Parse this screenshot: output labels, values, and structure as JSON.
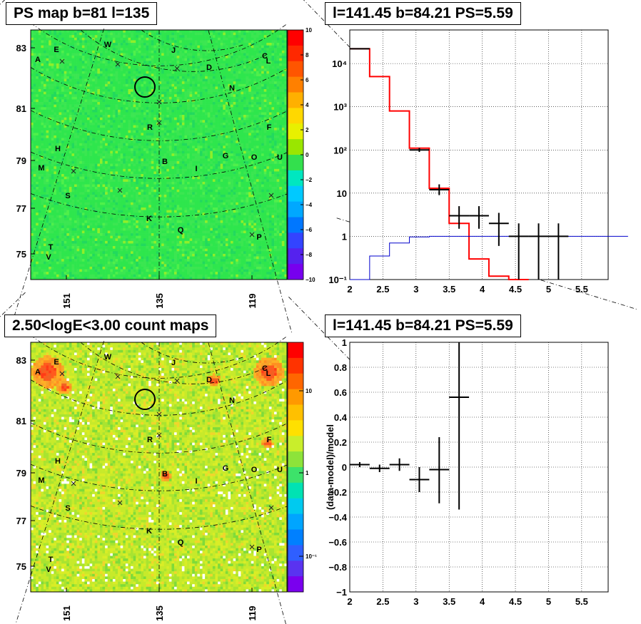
{
  "panels": {
    "tl_title": "PS map b=81 l=135",
    "tr_title": "l=141.45 b=84.21 PS=5.59",
    "bl_title": "2.50<logE<3.00 count maps",
    "br_title": "l=141.45 b=84.21 PS=5.59"
  },
  "map_labels": [
    "A",
    "E",
    "W",
    "J",
    "C",
    "L",
    "D",
    "N",
    "R",
    "F",
    "H",
    "B",
    "I",
    "G",
    "O",
    "U",
    "M",
    "S",
    "K",
    "Q",
    "P",
    "T",
    "V"
  ],
  "chart_data": [
    {
      "type": "heatmap",
      "title": "PS map b=81 l=135",
      "y_ticks": [
        "83",
        "81",
        "79",
        "77",
        "75"
      ],
      "x_ticks": [
        "151",
        "135",
        "119"
      ],
      "colorbar": {
        "min": -10,
        "max": 10,
        "ticks": [
          "10",
          "8",
          "6",
          "4",
          "2",
          "0",
          "−2",
          "−4",
          "−6",
          "−8",
          "−10"
        ]
      }
    },
    {
      "type": "line",
      "title": "l=141.45 b=84.21 PS=5.59",
      "xlim": [
        2,
        5.9
      ],
      "ylim": [
        0.1,
        60000
      ],
      "yscale": "log",
      "x_ticks": [
        "2",
        "2.5",
        "3",
        "3.5",
        "4",
        "4.5",
        "5",
        "5.5"
      ],
      "y_ticks": [
        "10⁴",
        "10³",
        "10²",
        "10",
        "1",
        "10⁻¹"
      ],
      "series": [
        {
          "style": "step",
          "color": "#ff0000",
          "x": [
            2.0,
            2.3,
            2.6,
            2.9,
            3.2,
            3.5,
            3.8,
            4.1,
            4.4
          ],
          "values": [
            22000,
            5000,
            800,
            110,
            13,
            2,
            0.3,
            0.12,
            0.06
          ]
        },
        {
          "style": "step",
          "color": "#0000cc",
          "x": [
            2.0,
            2.3,
            2.6,
            2.9,
            3.2,
            3.5,
            3.8,
            5.9
          ],
          "values": [
            0.08,
            0.35,
            0.7,
            0.97,
            1.0,
            1.0,
            1.0,
            1.0
          ]
        },
        {
          "style": "errorbar",
          "color": "#000000",
          "points": [
            {
              "x": 2.15,
              "xerr": 0.15,
              "y": 22000,
              "ylo": 21500,
              "yhi": 22500
            },
            {
              "x": 3.05,
              "xerr": 0.15,
              "y": 100,
              "ylo": 90,
              "yhi": 111
            },
            {
              "x": 3.35,
              "xerr": 0.15,
              "y": 12,
              "ylo": 9,
              "yhi": 16
            },
            {
              "x": 3.65,
              "xerr": 0.15,
              "y": 3,
              "ylo": 1.5,
              "yhi": 5
            },
            {
              "x": 3.95,
              "xerr": 0.15,
              "y": 3,
              "ylo": 1.5,
              "yhi": 5
            },
            {
              "x": 4.25,
              "xerr": 0.15,
              "y": 2,
              "ylo": 0.6,
              "yhi": 3.5
            },
            {
              "x": 4.55,
              "xerr": 0.15,
              "y": 1,
              "ylo": 0.1,
              "yhi": 2
            },
            {
              "x": 4.85,
              "xerr": 0.15,
              "y": 1,
              "ylo": 0.1,
              "yhi": 2
            },
            {
              "x": 5.15,
              "xerr": 0.15,
              "y": 1,
              "ylo": 0.1,
              "yhi": 2
            }
          ]
        }
      ]
    },
    {
      "type": "heatmap",
      "title": "2.50<logE<3.00 count maps",
      "y_ticks": [
        "83",
        "81",
        "79",
        "77",
        "75"
      ],
      "x_ticks": [
        "151",
        "135",
        "119"
      ],
      "colorbar": {
        "scale": "log",
        "ticks": [
          "10",
          "1",
          "10⁻¹"
        ]
      }
    },
    {
      "type": "scatter",
      "title": "l=141.45 b=84.21 PS=5.59",
      "ylabel": "(data-model)/model",
      "xlim": [
        2,
        5.9
      ],
      "ylim": [
        -1,
        1
      ],
      "x_ticks": [
        "2",
        "2.5",
        "3",
        "3.5",
        "4",
        "4.5",
        "5",
        "5.5"
      ],
      "y_ticks": [
        "1",
        "0.8",
        "0.6",
        "0.4",
        "0.2",
        "0",
        "−0.2",
        "−0.4",
        "−0.6",
        "−0.8",
        "−1"
      ],
      "points": [
        {
          "x": 2.15,
          "xerr": 0.15,
          "y": 0.02,
          "ylo": 0.0,
          "yhi": 0.04
        },
        {
          "x": 2.45,
          "xerr": 0.15,
          "y": -0.01,
          "ylo": -0.04,
          "yhi": 0.02
        },
        {
          "x": 2.75,
          "xerr": 0.15,
          "y": 0.02,
          "ylo": -0.03,
          "yhi": 0.07
        },
        {
          "x": 3.05,
          "xerr": 0.15,
          "y": -0.1,
          "ylo": -0.2,
          "yhi": 0.0
        },
        {
          "x": 3.35,
          "xerr": 0.15,
          "y": -0.02,
          "ylo": -0.29,
          "yhi": 0.24
        },
        {
          "x": 3.65,
          "xerr": 0.15,
          "y": 0.56,
          "ylo": -0.34,
          "yhi": 1.0
        }
      ]
    }
  ]
}
